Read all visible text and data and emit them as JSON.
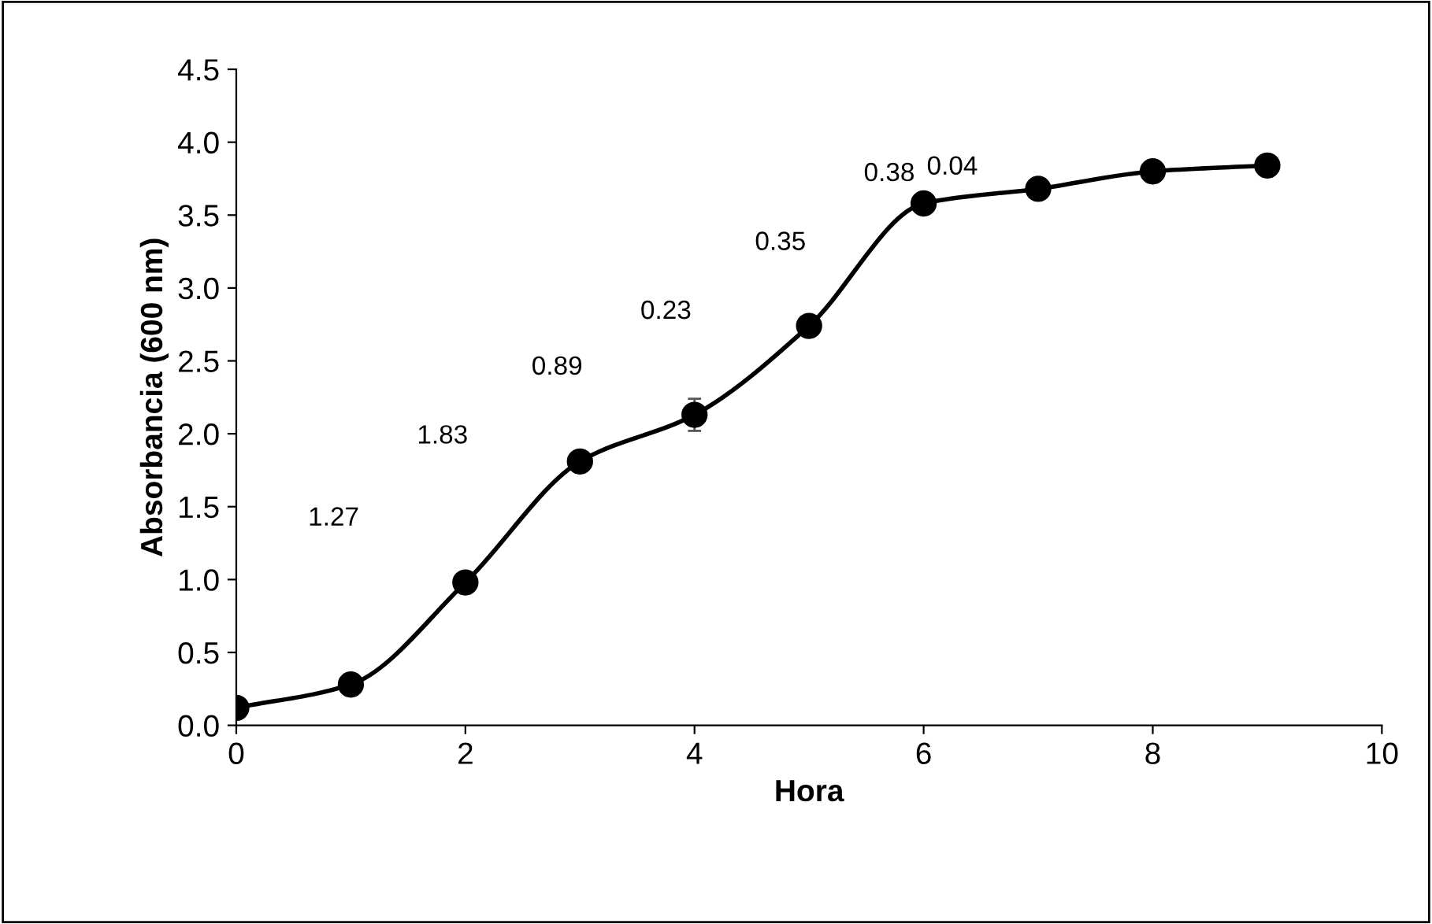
{
  "chart_data": {
    "type": "line",
    "xlabel": "Hora",
    "ylabel": "Absorbancia (600 nm)",
    "x": [
      0,
      1,
      2,
      3,
      4,
      5,
      6,
      7,
      8,
      9
    ],
    "series": [
      {
        "color": "#000000",
        "values": [
          0.12,
          0.28,
          0.98,
          1.81,
          2.13,
          2.74,
          3.58,
          3.68,
          3.8,
          3.84
        ],
        "errors": [
          null,
          null,
          null,
          null,
          0.11,
          null,
          null,
          null,
          null,
          null
        ]
      }
    ],
    "marker": "circle",
    "line_style": "solid",
    "grid": false,
    "xlim": [
      0,
      10
    ],
    "xticks": [
      0,
      2,
      4,
      6,
      8,
      10
    ],
    "ylim": [
      0,
      4.5
    ],
    "yticks": [
      {
        "value": 0,
        "label": "0.0"
      },
      {
        "value": 0.5,
        "label": "0.5"
      },
      {
        "value": 1,
        "label": "1.0"
      },
      {
        "value": 1.5,
        "label": "1.5"
      },
      {
        "value": 2,
        "label": "2.0"
      },
      {
        "value": 2.5,
        "label": "2.5"
      },
      {
        "value": 3,
        "label": "3.0"
      },
      {
        "value": 3.5,
        "label": "3.5"
      },
      {
        "value": 4,
        "label": "4.0"
      },
      {
        "value": 4.5,
        "label": "4.5"
      }
    ],
    "annotations": [
      "1.27",
      "1.83",
      "0.89",
      "0.23",
      "0.35",
      "0.38",
      "0.04"
    ]
  }
}
